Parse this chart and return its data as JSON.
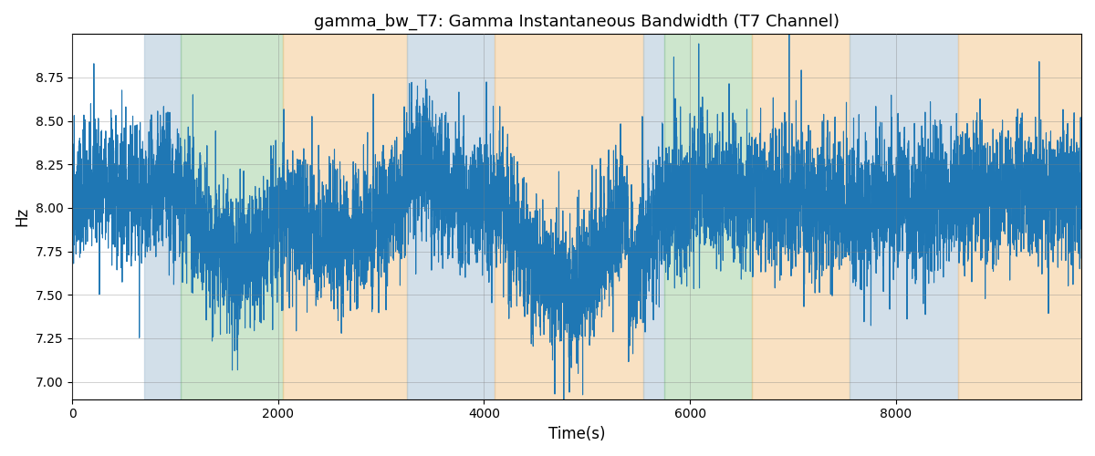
{
  "title": "gamma_bw_T7: Gamma Instantaneous Bandwidth (T7 Channel)",
  "xlabel": "Time(s)",
  "ylabel": "Hz",
  "xlim": [
    0,
    9800
  ],
  "ylim": [
    6.9,
    9.0
  ],
  "yticks": [
    7.0,
    7.25,
    7.5,
    7.75,
    8.0,
    8.25,
    8.5,
    8.75
  ],
  "line_color": "#1f77b4",
  "line_width": 0.8,
  "background_regions": [
    {
      "start": 700,
      "end": 1050,
      "color": "#aec6d8",
      "alpha": 0.55
    },
    {
      "start": 1050,
      "end": 2050,
      "color": "#90c990",
      "alpha": 0.45
    },
    {
      "start": 2050,
      "end": 3250,
      "color": "#f5c990",
      "alpha": 0.55
    },
    {
      "start": 3250,
      "end": 4100,
      "color": "#aec6d8",
      "alpha": 0.55
    },
    {
      "start": 4100,
      "end": 5550,
      "color": "#f5c990",
      "alpha": 0.55
    },
    {
      "start": 5550,
      "end": 5750,
      "color": "#aec6d8",
      "alpha": 0.55
    },
    {
      "start": 5750,
      "end": 6600,
      "color": "#90c990",
      "alpha": 0.45
    },
    {
      "start": 6600,
      "end": 7550,
      "color": "#f5c990",
      "alpha": 0.55
    },
    {
      "start": 7550,
      "end": 8600,
      "color": "#aec6d8",
      "alpha": 0.55
    },
    {
      "start": 8600,
      "end": 9800,
      "color": "#f5c990",
      "alpha": 0.55
    }
  ],
  "seed": 42,
  "n_points": 9700,
  "title_fontsize": 13,
  "label_fontsize": 12
}
